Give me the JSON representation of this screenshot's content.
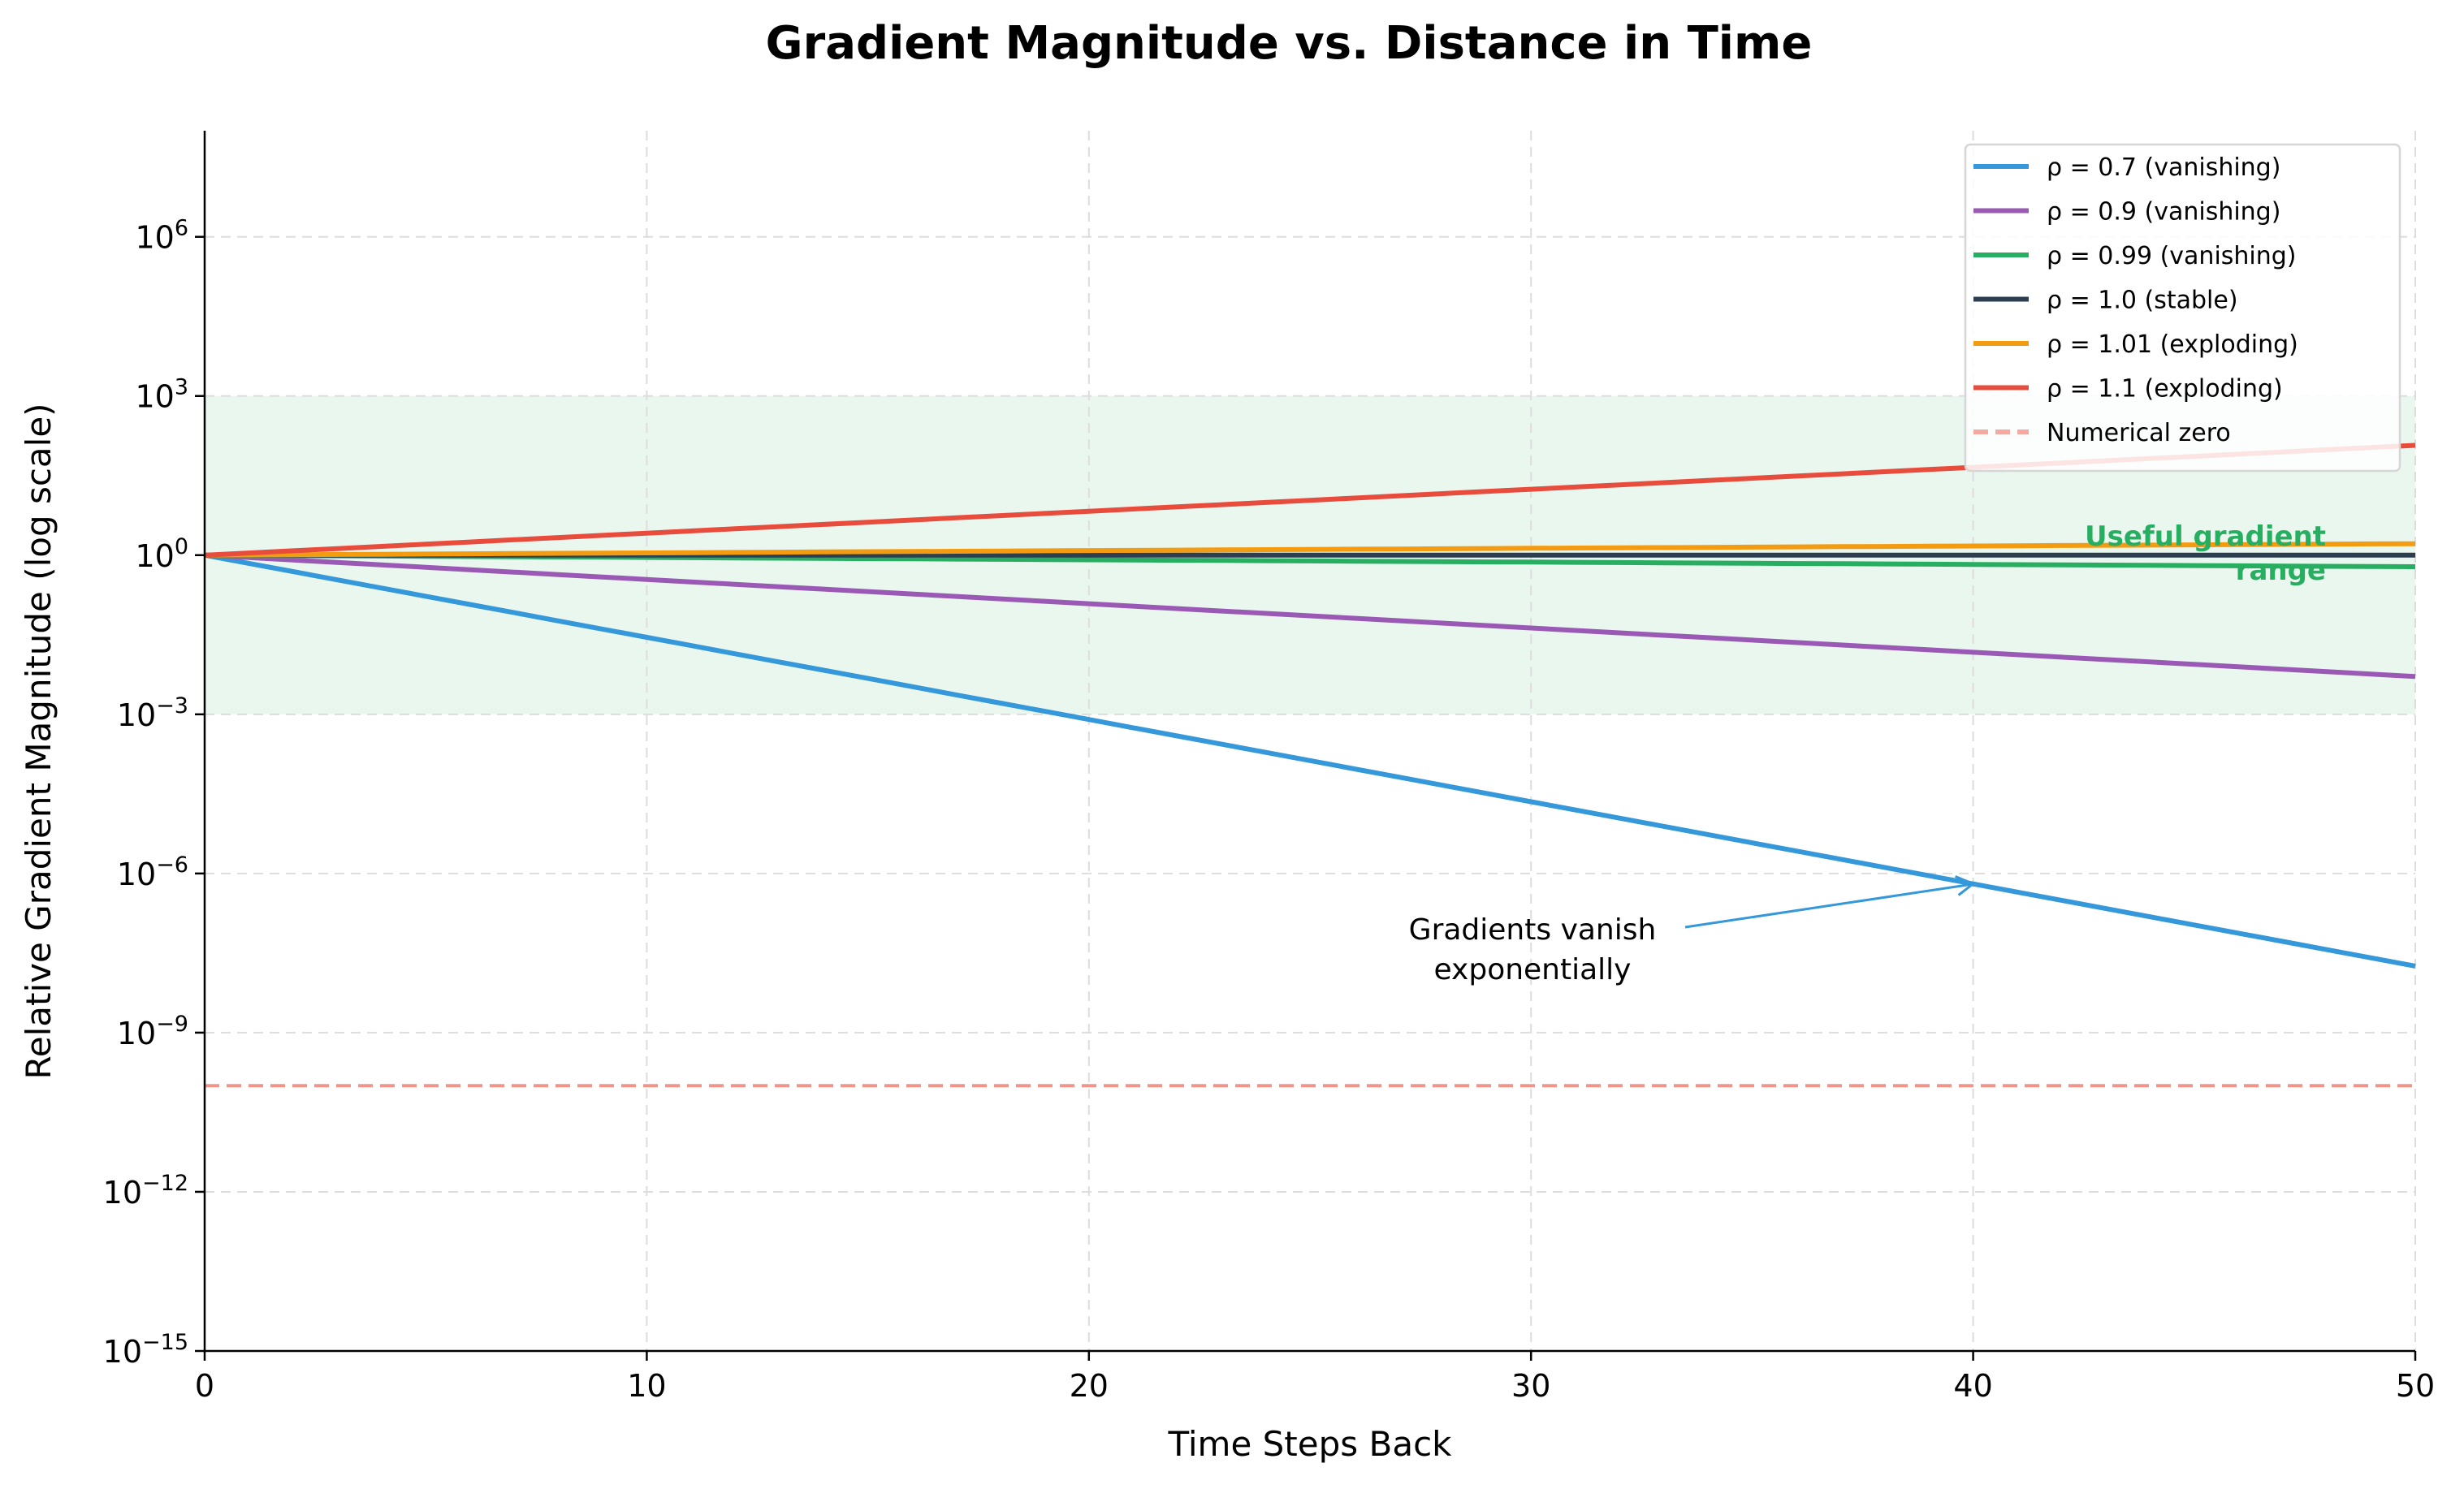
{
  "chart_data": {
    "type": "line",
    "title": "Gradient Magnitude vs. Distance in Time",
    "xlabel": "Time Steps Back",
    "ylabel": "Relative Gradient Magnitude (log scale)",
    "xlim": [
      0,
      50
    ],
    "ylim": [
      1e-15,
      100000000.0
    ],
    "yscale": "log",
    "grid": true,
    "legend_position": "top-right",
    "x_ticks": [
      "0",
      "10",
      "20",
      "30",
      "40",
      "50"
    ],
    "y_ticks": [
      {
        "base": "10",
        "exp": "−15",
        "value": -15
      },
      {
        "base": "10",
        "exp": "−12",
        "value": -12
      },
      {
        "base": "10",
        "exp": "−9",
        "value": -9
      },
      {
        "base": "10",
        "exp": "−6",
        "value": -6
      },
      {
        "base": "10",
        "exp": "−3",
        "value": -3
      },
      {
        "base": "10",
        "exp": "0",
        "value": 0
      },
      {
        "base": "10",
        "exp": "3",
        "value": 3
      },
      {
        "base": "10",
        "exp": "6",
        "value": 6
      }
    ],
    "series": [
      {
        "name": "ρ = 0.7 (vanishing)",
        "rho": 0.7,
        "color": "#3498db",
        "formula": "rho^t, t = 0..50"
      },
      {
        "name": "ρ = 0.9 (vanishing)",
        "rho": 0.9,
        "color": "#9b59b6",
        "formula": "rho^t, t = 0..50"
      },
      {
        "name": "ρ = 0.99 (vanishing)",
        "rho": 0.99,
        "color": "#27ae60",
        "formula": "rho^t, t = 0..50"
      },
      {
        "name": "ρ = 1.0 (stable)",
        "rho": 1.0,
        "color": "#2c3e50",
        "formula": "rho^t, t = 0..50"
      },
      {
        "name": "ρ = 1.01 (exploding)",
        "rho": 1.01,
        "color": "#f39c12",
        "formula": "rho^t, t = 0..50"
      },
      {
        "name": "ρ = 1.1 (exploding)",
        "rho": 1.1,
        "color": "#e74c3c",
        "formula": "rho^t, t = 0..50"
      }
    ],
    "reference_line": {
      "name": "Numerical zero",
      "y": 1e-10,
      "color": "#f1948a",
      "style": "dashed"
    },
    "shaded_region": {
      "y_from": 0.001,
      "y_to": 1000.0,
      "color": "#27ae60",
      "label_line1": "Useful gradient",
      "label_line2": "range",
      "label_color": "#27ae60"
    },
    "annotation": {
      "line1": "Gradients vanish",
      "line2": "exponentially",
      "target_x": 40,
      "target_y": 6.4e-07,
      "color": "#3498db"
    }
  }
}
